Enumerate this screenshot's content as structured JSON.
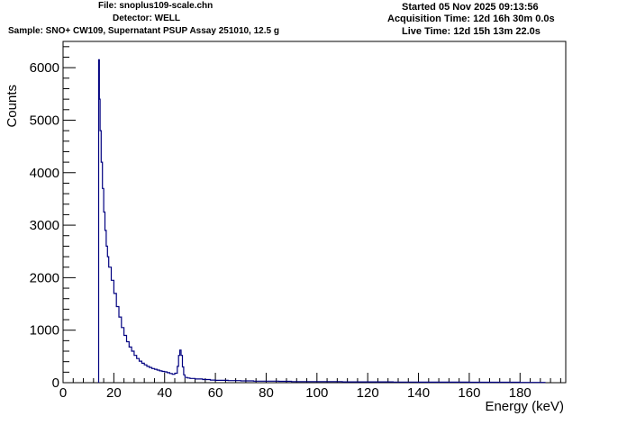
{
  "header": {
    "file": "File: snoplus109-scale.chn",
    "detector": "Detector: WELL",
    "sample": "Sample: SNO+ CW109, Supernatant PSUP Assay 251010, 12.5 g",
    "started": "Started 05 Nov 2025 09:13:56",
    "acquisition": "Acquisition Time: 12d 16h 30m 0.0s",
    "live": "Live Time: 12d 15h 13m 22.0s"
  },
  "chart_data": {
    "type": "line",
    "xlabel": "Energy (keV)",
    "ylabel": "Counts",
    "xlim": [
      0,
      198
    ],
    "ylim": [
      0,
      6500
    ],
    "x_ticks": [
      0,
      20,
      40,
      60,
      80,
      100,
      120,
      140,
      160,
      180
    ],
    "y_ticks": [
      0,
      1000,
      2000,
      3000,
      4000,
      5000,
      6000
    ],
    "grid": false,
    "line_color": "#000080",
    "series": [
      {
        "x": [
          14,
          14.3,
          14.6,
          15,
          15.5,
          16,
          16.5,
          17,
          17.5,
          18,
          19,
          20,
          21,
          22,
          23,
          24,
          25,
          26,
          27,
          28,
          29,
          30,
          31,
          32,
          33,
          34,
          35,
          36,
          37,
          38,
          39,
          40,
          41,
          42,
          43,
          44,
          45,
          45.5,
          46,
          46.5,
          47,
          47.5,
          48,
          49,
          50,
          52,
          55,
          58,
          60,
          65,
          70,
          75,
          80,
          85,
          90,
          95,
          100,
          110,
          120,
          130,
          140,
          150,
          160,
          170,
          180,
          190
        ],
        "y": [
          6150,
          5400,
          4800,
          4200,
          3700,
          3250,
          2900,
          2600,
          2400,
          2200,
          1950,
          1700,
          1450,
          1250,
          1050,
          900,
          780,
          680,
          600,
          520,
          460,
          410,
          370,
          340,
          310,
          290,
          270,
          255,
          240,
          225,
          215,
          205,
          190,
          175,
          160,
          180,
          310,
          520,
          620,
          520,
          300,
          150,
          100,
          90,
          80,
          70,
          60,
          50,
          45,
          40,
          35,
          30,
          30,
          25,
          20,
          20,
          20,
          15,
          15,
          12,
          10,
          10,
          8,
          8,
          5,
          5
        ]
      }
    ]
  }
}
